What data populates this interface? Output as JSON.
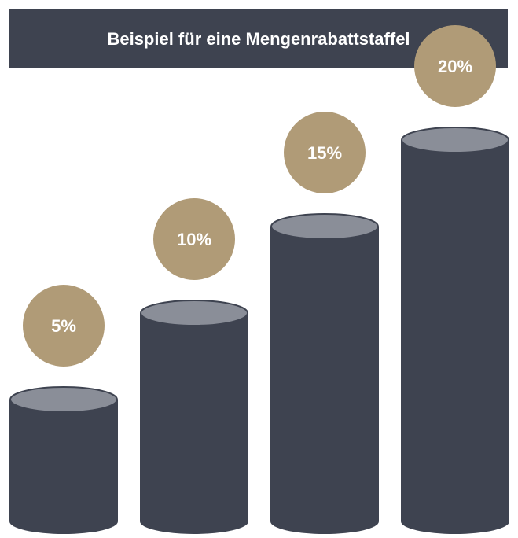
{
  "title": "Beispiel für eine Mengenrabattstaffel",
  "colors": {
    "header_bg": "#3e4350",
    "cylinder_body": "#3e4350",
    "cylinder_top": "#8a8e98",
    "badge": "#b09b77",
    "badge_text": "#ffffff"
  },
  "chart_data": {
    "type": "bar",
    "style": "cylinder",
    "title": "Beispiel für eine Mengenrabattstaffel",
    "xlabel": "",
    "ylabel": "",
    "values": [
      5,
      10,
      15,
      20
    ],
    "labels": [
      "5%",
      "10%",
      "15%",
      "20%"
    ],
    "grid": false,
    "legend": "none"
  }
}
